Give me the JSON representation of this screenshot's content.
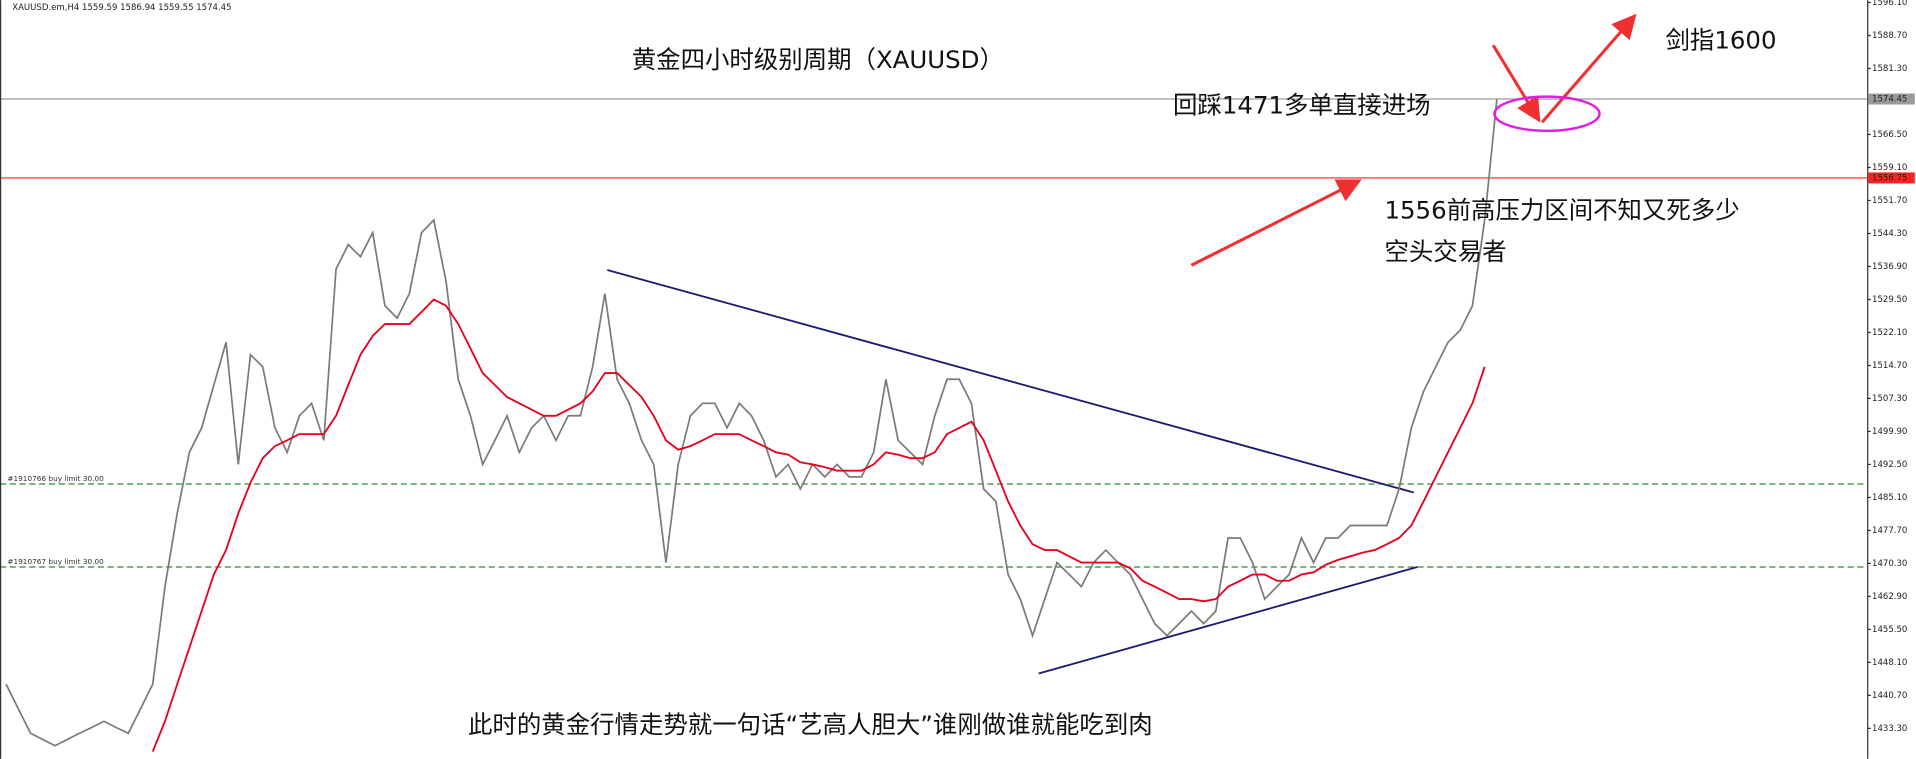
{
  "chart_data": {
    "type": "line",
    "header": "XAUUSD.em,H4  1559.59 1586.94 1559.55 1574.45",
    "ylim": [
      1426.45,
      1596.64
    ],
    "yticks": [
      {
        "value": 1596.1,
        "label": "1596.10"
      },
      {
        "value": 1588.7,
        "label": "1588.70"
      },
      {
        "value": 1581.3,
        "label": "1581.30"
      },
      {
        "value": 1566.5,
        "label": "1566.50"
      },
      {
        "value": 1559.1,
        "label": "1559.10"
      },
      {
        "value": 1551.7,
        "label": "1551.70"
      },
      {
        "value": 1544.3,
        "label": "1544.30"
      },
      {
        "value": 1536.9,
        "label": "1536.90"
      },
      {
        "value": 1529.5,
        "label": "1529.50"
      },
      {
        "value": 1522.1,
        "label": "1522.10"
      },
      {
        "value": 1514.7,
        "label": "1514.70"
      },
      {
        "value": 1507.3,
        "label": "1507.30"
      },
      {
        "value": 1499.9,
        "label": "1499.90"
      },
      {
        "value": 1492.5,
        "label": "1492.50"
      },
      {
        "value": 1485.1,
        "label": "1485.10"
      },
      {
        "value": 1477.7,
        "label": "1477.70"
      },
      {
        "value": 1470.3,
        "label": "1470.30"
      },
      {
        "value": 1462.9,
        "label": "1462.90"
      },
      {
        "value": 1455.5,
        "label": "1455.50"
      },
      {
        "value": 1448.1,
        "label": "1448.10"
      },
      {
        "value": 1440.7,
        "label": "1440.70"
      },
      {
        "value": 1433.3,
        "label": "1433.30"
      }
    ],
    "series": [
      {
        "color": "#7a7a7a",
        "values": [
          1443.2,
          1437.7,
          1432.2,
          1430.8,
          1429.4,
          1430.8,
          1432.2,
          1433.5,
          1434.9,
          1433.5,
          1432.2,
          1437.7,
          1443.2,
          1465.1,
          1481.5,
          1495.2,
          1500.7,
          1510.3,
          1519.9,
          1492.5,
          1517.1,
          1514.4,
          1500.7,
          1495.2,
          1503.4,
          1506.2,
          1497.9,
          1536.3,
          1541.8,
          1539.1,
          1544.5,
          1528.1,
          1525.3,
          1530.8,
          1544.5,
          1547.3,
          1533.6,
          1511.6,
          1503.4,
          1492.5,
          1497.9,
          1503.4,
          1495.2,
          1500.7,
          1503.4,
          1497.9,
          1503.4,
          1503.4,
          1514.4,
          1530.8,
          1511.6,
          1506.2,
          1497.9,
          1492.5,
          1470.5,
          1492.5,
          1503.4,
          1506.2,
          1506.2,
          1500.7,
          1506.2,
          1503.4,
          1497.9,
          1489.7,
          1492.5,
          1487.0,
          1492.5,
          1489.7,
          1492.5,
          1489.7,
          1489.7,
          1495.2,
          1511.6,
          1497.9,
          1495.2,
          1492.5,
          1503.4,
          1511.6,
          1511.6,
          1506.2,
          1487.0,
          1484.2,
          1467.8,
          1462.3,
          1454.1,
          1462.3,
          1470.5,
          1467.8,
          1465.1,
          1470.5,
          1473.3,
          1470.5,
          1467.8,
          1462.3,
          1456.8,
          1454.1,
          1456.8,
          1459.6,
          1456.8,
          1459.6,
          1476.0,
          1476.0,
          1470.5,
          1462.3,
          1465.1,
          1467.8,
          1476.0,
          1470.5,
          1476.0,
          1476.0,
          1478.8,
          1478.8,
          1478.8,
          1478.8,
          1487.0,
          1500.7,
          1508.9,
          1514.4,
          1519.9,
          1522.6,
          1528.1,
          1547.3,
          1574.45
        ]
      },
      {
        "color": "#e8001c",
        "values": [
          null,
          null,
          null,
          null,
          null,
          null,
          null,
          null,
          null,
          null,
          null,
          null,
          1428.1,
          1434.9,
          1443.2,
          1451.4,
          1459.6,
          1467.8,
          1473.3,
          1481.5,
          1488.4,
          1493.9,
          1496.6,
          1497.9,
          1499.3,
          1499.3,
          1499.3,
          1503.4,
          1510.3,
          1517.1,
          1521.3,
          1524.0,
          1524.0,
          1524.0,
          1526.7,
          1529.5,
          1528.1,
          1524.0,
          1518.5,
          1513.0,
          1510.3,
          1507.6,
          1506.2,
          1504.8,
          1503.4,
          1503.4,
          1504.8,
          1506.2,
          1508.9,
          1513.0,
          1513.0,
          1510.3,
          1507.6,
          1503.4,
          1497.9,
          1495.8,
          1496.6,
          1497.9,
          1499.3,
          1499.3,
          1499.3,
          1497.9,
          1496.6,
          1495.2,
          1494.7,
          1493.0,
          1492.5,
          1491.9,
          1491.1,
          1491.1,
          1491.1,
          1492.5,
          1495.2,
          1494.7,
          1493.9,
          1493.9,
          1495.2,
          1499.3,
          1500.7,
          1502.1,
          1497.9,
          1491.1,
          1484.2,
          1478.8,
          1474.6,
          1473.3,
          1473.3,
          1471.9,
          1470.5,
          1470.5,
          1470.5,
          1470.5,
          1469.2,
          1466.4,
          1465.1,
          1463.7,
          1462.3,
          1462.3,
          1461.8,
          1462.3,
          1465.1,
          1466.4,
          1467.8,
          1467.8,
          1466.4,
          1466.4,
          1467.8,
          1468.3,
          1470.0,
          1471.1,
          1471.9,
          1472.7,
          1473.3,
          1474.6,
          1476.0,
          1478.8,
          1484.2,
          1489.7,
          1495.2,
          1500.7,
          1506.2,
          1514.4,
          null
        ]
      }
    ],
    "hlines": [
      {
        "value": 1574.45,
        "color": "#9a9a9a",
        "dash": false,
        "price_box": true
      },
      {
        "value": 1556.75,
        "color": "#ff2020",
        "dash": false,
        "price_box": true
      },
      {
        "value": 1488.1,
        "color": "#2e8b2e",
        "dash": true,
        "name": "#1910766 buy limit 30.00"
      },
      {
        "value": 1469.5,
        "color": "#2e8b2e",
        "dash": true,
        "name": "#1910767 buy limit 30.00"
      }
    ],
    "trendlines": [
      {
        "from": [
          49.2,
          1536.1
        ],
        "to": [
          115.2,
          1486.2
        ],
        "color": "#1a1a70"
      },
      {
        "from": [
          84.5,
          1445.6
        ],
        "to": [
          115.5,
          1469.5
        ],
        "color": "#1a1a70"
      }
    ],
    "annotations": {
      "title": "黄金四小时级别周期（XAUUSD）",
      "entry": "回踩1471多单直接进场",
      "target": "剑指1600",
      "resistance": [
        "1556前高压力区间不知又死多少",
        "空头交易者"
      ],
      "footer": "此时的黄金行情走势就一句话“艺高人胆大”谁刚做谁就能吃到肉"
    }
  }
}
